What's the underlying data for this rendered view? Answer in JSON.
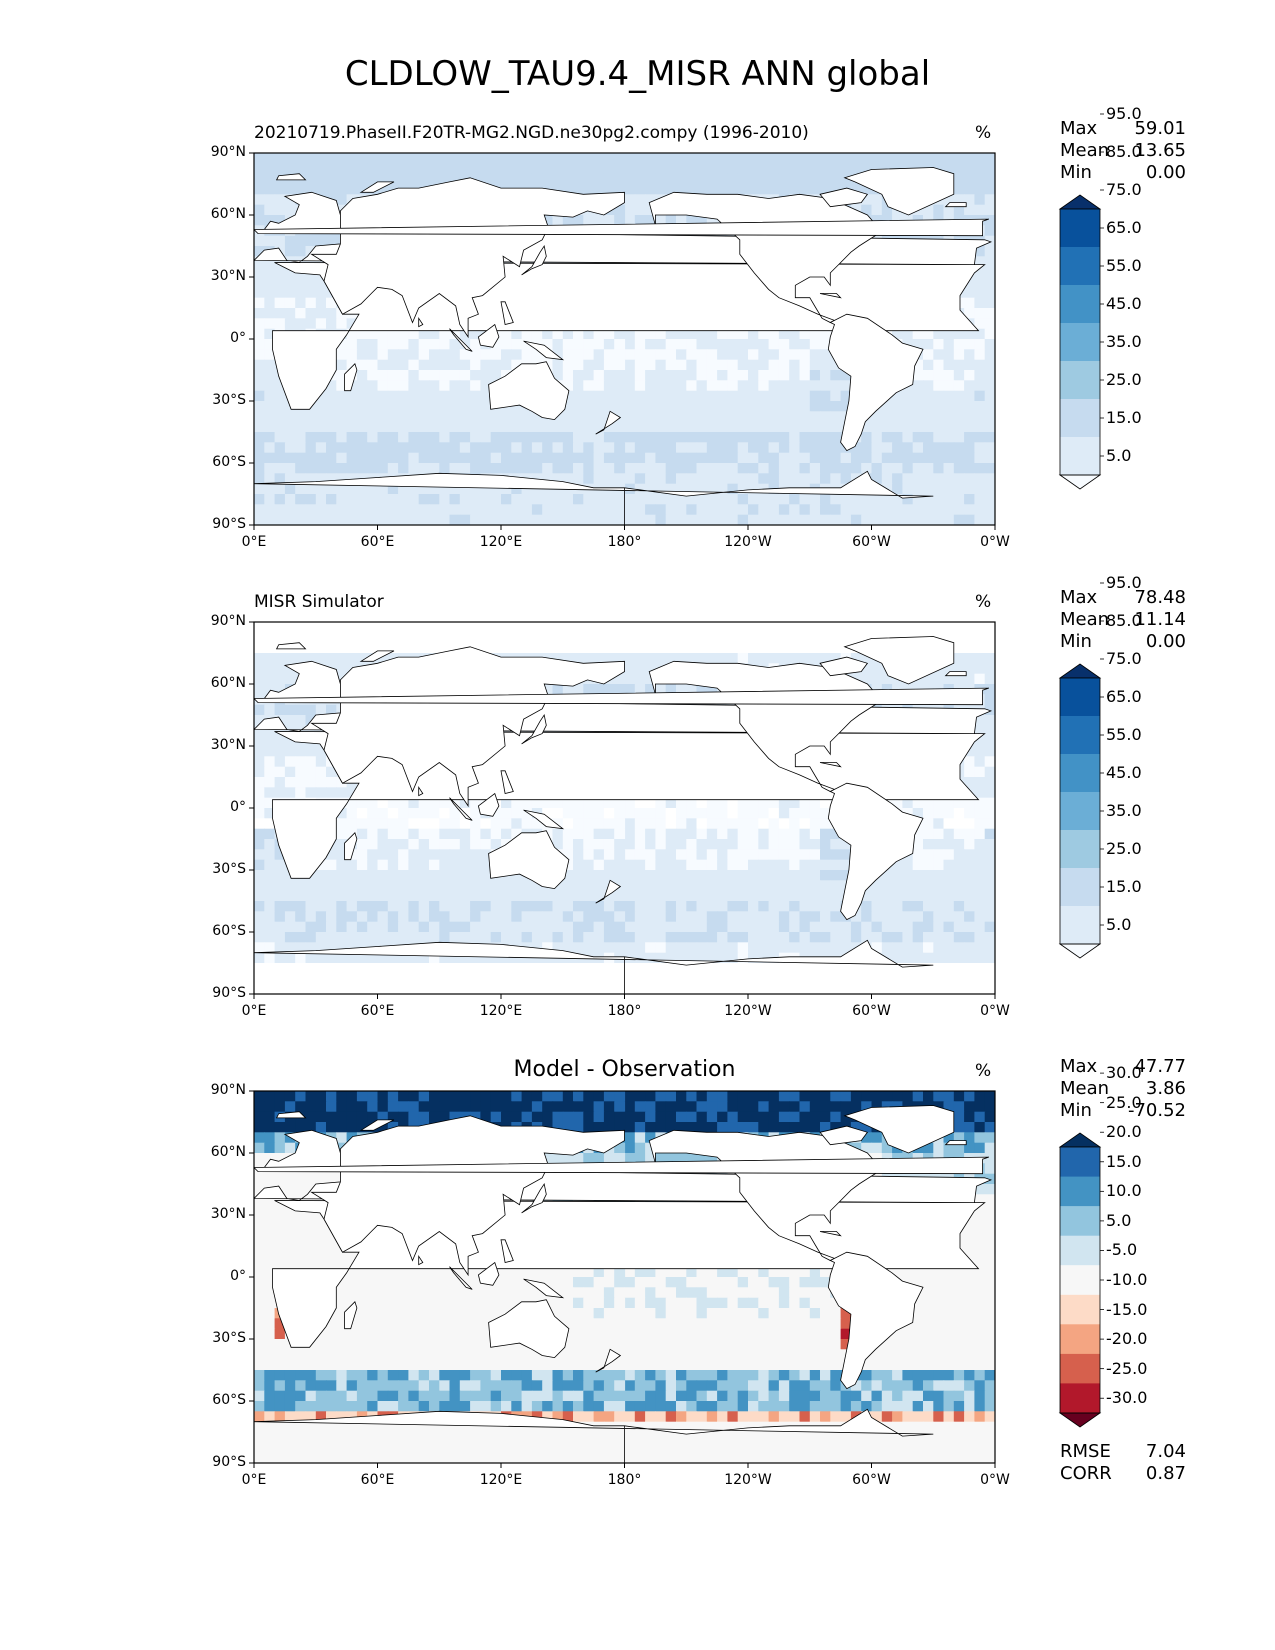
{
  "figure": {
    "title": "CLDLOW_TAU9.4_MISR ANN global"
  },
  "colors": {
    "blues": [
      "#f7fbff",
      "#deebf7",
      "#c6dbef",
      "#9ecae1",
      "#6baed6",
      "#4292c6",
      "#2171b5",
      "#08519c",
      "#08306b"
    ],
    "diff": [
      "#67001f",
      "#b2182b",
      "#d6604d",
      "#f4a582",
      "#fddbc7",
      "#f7f7f7",
      "#d1e5f0",
      "#92c5de",
      "#4393c3",
      "#2166ac",
      "#053061"
    ],
    "land_fill": "#ffffff",
    "coastline": "#000000"
  },
  "axes": {
    "lat_ticks": [
      "90°N",
      "60°N",
      "30°N",
      "0°",
      "30°S",
      "60°S",
      "90°S"
    ],
    "lon_ticks": [
      "0°E",
      "60°E",
      "120°E",
      "180°",
      "120°W",
      "60°W",
      "0°W"
    ]
  },
  "panels": [
    {
      "title": "20210719.PhaseII.F20TR-MG2.NGD.ne30pg2.compy (1996-2010)",
      "title_style": "left",
      "units": "%",
      "stats": [
        {
          "label": "Max",
          "value": "59.01"
        },
        {
          "label": "Mean",
          "value": "13.65"
        },
        {
          "label": "Min",
          "value": "0.00"
        }
      ],
      "colorbar": {
        "scheme": "blues",
        "levels": [
          "5.0",
          "15.0",
          "25.0",
          "35.0",
          "45.0",
          "55.0",
          "65.0",
          "75.0",
          "85.0",
          "95.0"
        ]
      }
    },
    {
      "title": "MISR Simulator",
      "title_style": "left",
      "units": "%",
      "stats": [
        {
          "label": "Max",
          "value": "78.48"
        },
        {
          "label": "Mean",
          "value": "11.14"
        },
        {
          "label": "Min",
          "value": "0.00"
        }
      ],
      "colorbar": {
        "scheme": "blues",
        "levels": [
          "5.0",
          "15.0",
          "25.0",
          "35.0",
          "45.0",
          "55.0",
          "65.0",
          "75.0",
          "85.0",
          "95.0"
        ]
      }
    },
    {
      "title": "Model - Observation",
      "title_style": "center",
      "units": "%",
      "stats": [
        {
          "label": "Max",
          "value": "47.77"
        },
        {
          "label": "Mean",
          "value": "3.86"
        },
        {
          "label": "Min",
          "value": "-70.52"
        }
      ],
      "colorbar": {
        "scheme": "diff",
        "levels": [
          "-30.0",
          "-25.0",
          "-20.0",
          "-15.0",
          "-10.0",
          "-5.0",
          "5.0",
          "10.0",
          "15.0",
          "20.0",
          "25.0",
          "30.0"
        ]
      },
      "extra_stats": [
        {
          "label": "RMSE",
          "value": "7.04"
        },
        {
          "label": "CORR",
          "value": "0.87"
        }
      ]
    }
  ]
}
